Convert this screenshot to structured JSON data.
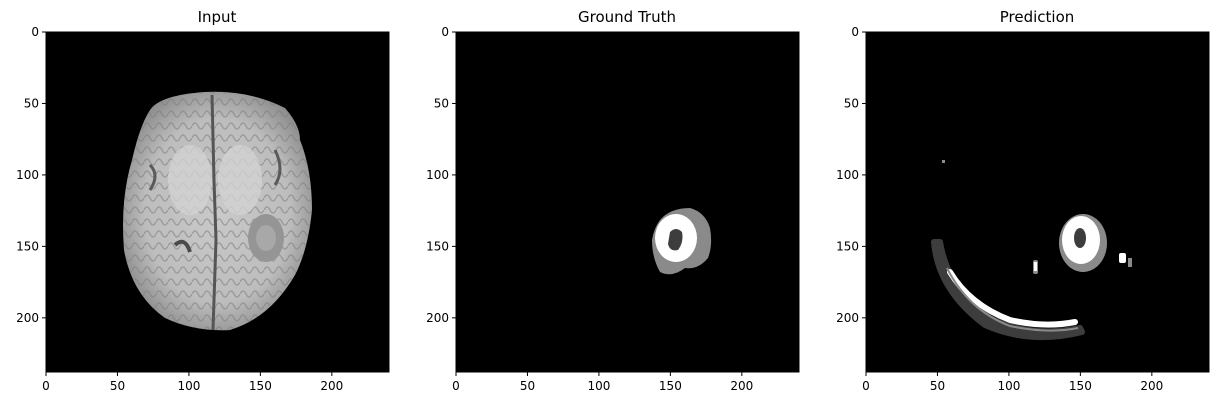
{
  "figure": {
    "panels": [
      {
        "title": "Input",
        "x_ticks": [
          "0",
          "50",
          "100",
          "150",
          "200"
        ],
        "y_ticks": [
          "0",
          "50",
          "100",
          "150",
          "200"
        ]
      },
      {
        "title": "Ground Truth",
        "x_ticks": [
          "0",
          "50",
          "100",
          "150",
          "200"
        ],
        "y_ticks": [
          "0",
          "50",
          "100",
          "150",
          "200"
        ]
      },
      {
        "title": "Prediction",
        "x_ticks": [
          "0",
          "50",
          "100",
          "150",
          "200"
        ],
        "y_ticks": [
          "0",
          "50",
          "100",
          "150",
          "200"
        ]
      }
    ]
  },
  "colors": {
    "background": "#000000",
    "label_dark": "#3d3d3d",
    "label_mid": "#8a8a8a",
    "label_bright": "#ffffff"
  }
}
